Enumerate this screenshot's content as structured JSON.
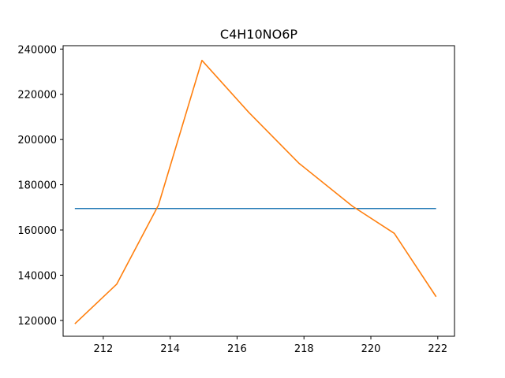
{
  "chart_data": {
    "type": "line",
    "title": "C4H10NO6P",
    "xlabel": "",
    "ylabel": "",
    "xlim": [
      210.8,
      222.5
    ],
    "ylim": [
      113000,
      241500
    ],
    "xticks": [
      212,
      214,
      216,
      218,
      220,
      222
    ],
    "yticks": [
      120000,
      140000,
      160000,
      180000,
      200000,
      220000,
      240000
    ],
    "grid": false,
    "series": [
      {
        "color": "#1f77b4",
        "x": [
          211.15,
          212.4,
          213.65,
          215.0,
          216.3,
          217.7,
          218.9,
          220.2,
          221.3,
          221.95
        ],
        "y": [
          169500,
          169500,
          169500,
          169500,
          169500,
          169500,
          169500,
          169500,
          169500,
          169500
        ]
      },
      {
        "color": "#ff7f0e",
        "x": [
          211.15,
          212.4,
          213.65,
          214.95,
          216.35,
          217.85,
          219.45,
          220.7,
          221.95
        ],
        "y": [
          118500,
          136000,
          171000,
          235000,
          212000,
          189500,
          170500,
          158500,
          130500
        ]
      }
    ]
  }
}
